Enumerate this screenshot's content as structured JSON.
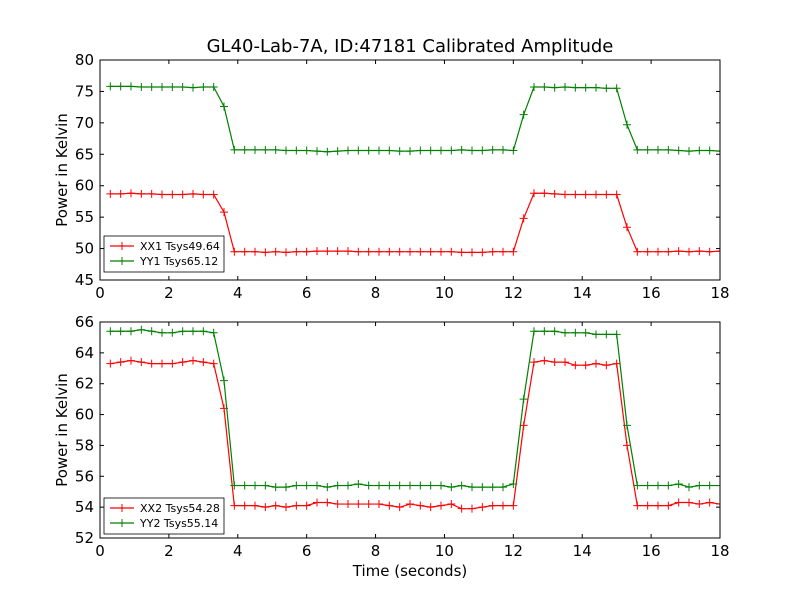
{
  "chart_data": [
    {
      "type": "line",
      "title": "GL40-Lab-7A, ID:47181 Calibrated Amplitude",
      "xlabel": "",
      "ylabel": "Power in Kelvin",
      "xlim": [
        0,
        18
      ],
      "ylim": [
        45,
        80
      ],
      "xticks": [
        "0",
        "2",
        "4",
        "6",
        "8",
        "10",
        "12",
        "14",
        "16",
        "18"
      ],
      "yticks": [
        "45",
        "50",
        "55",
        "60",
        "65",
        "70",
        "75",
        "80"
      ],
      "grid": false,
      "legend_position": "lower-left",
      "x": [
        0.3,
        0.6,
        0.9,
        1.2,
        1.5,
        1.8,
        2.1,
        2.4,
        2.7,
        3.0,
        3.3,
        3.6,
        3.9,
        4.2,
        4.5,
        4.8,
        5.1,
        5.4,
        5.7,
        6.0,
        6.3,
        6.6,
        6.9,
        7.2,
        7.5,
        7.8,
        8.1,
        8.4,
        8.7,
        9.0,
        9.3,
        9.6,
        9.9,
        10.2,
        10.5,
        10.8,
        11.1,
        11.4,
        11.7,
        12.0,
        12.3,
        12.6,
        12.9,
        13.2,
        13.5,
        13.8,
        14.1,
        14.4,
        14.7,
        15.0,
        15.3,
        15.6,
        15.9,
        16.2,
        16.5,
        16.8,
        17.1,
        17.4,
        17.7,
        18.0
      ],
      "series": [
        {
          "name": "XX1 Tsys49.64",
          "color": "#ff0000",
          "values": [
            58.7,
            58.7,
            58.8,
            58.7,
            58.7,
            58.6,
            58.6,
            58.6,
            58.7,
            58.6,
            58.6,
            55.8,
            49.5,
            49.5,
            49.5,
            49.4,
            49.5,
            49.4,
            49.5,
            49.5,
            49.6,
            49.6,
            49.6,
            49.6,
            49.5,
            49.5,
            49.5,
            49.5,
            49.5,
            49.5,
            49.5,
            49.5,
            49.5,
            49.5,
            49.4,
            49.4,
            49.4,
            49.5,
            49.5,
            49.5,
            54.8,
            58.8,
            58.8,
            58.7,
            58.6,
            58.6,
            58.6,
            58.6,
            58.6,
            58.6,
            53.4,
            49.5,
            49.5,
            49.5,
            49.5,
            49.6,
            49.5,
            49.6,
            49.5,
            49.6
          ]
        },
        {
          "name": "YY1 Tsys65.12",
          "color": "#008000",
          "values": [
            75.8,
            75.8,
            75.8,
            75.7,
            75.7,
            75.7,
            75.7,
            75.7,
            75.6,
            75.7,
            75.7,
            72.6,
            65.7,
            65.7,
            65.7,
            65.7,
            65.7,
            65.6,
            65.6,
            65.6,
            65.5,
            65.4,
            65.5,
            65.6,
            65.6,
            65.6,
            65.6,
            65.6,
            65.5,
            65.5,
            65.6,
            65.6,
            65.6,
            65.6,
            65.7,
            65.6,
            65.6,
            65.7,
            65.7,
            65.6,
            71.3,
            75.7,
            75.7,
            75.6,
            75.7,
            75.6,
            75.6,
            75.6,
            75.5,
            75.5,
            69.7,
            65.7,
            65.7,
            65.7,
            65.7,
            65.6,
            65.5,
            65.6,
            65.6,
            65.5
          ]
        }
      ]
    },
    {
      "type": "line",
      "title": "",
      "xlabel": "Time (seconds)",
      "ylabel": "Power in Kelvin",
      "xlim": [
        0,
        18
      ],
      "ylim": [
        52,
        66
      ],
      "xticks": [
        "0",
        "2",
        "4",
        "6",
        "8",
        "10",
        "12",
        "14",
        "16",
        "18"
      ],
      "yticks": [
        "52",
        "54",
        "56",
        "58",
        "60",
        "62",
        "64",
        "66"
      ],
      "grid": false,
      "legend_position": "lower-left",
      "x": [
        0.3,
        0.6,
        0.9,
        1.2,
        1.5,
        1.8,
        2.1,
        2.4,
        2.7,
        3.0,
        3.3,
        3.6,
        3.9,
        4.2,
        4.5,
        4.8,
        5.1,
        5.4,
        5.7,
        6.0,
        6.3,
        6.6,
        6.9,
        7.2,
        7.5,
        7.8,
        8.1,
        8.4,
        8.7,
        9.0,
        9.3,
        9.6,
        9.9,
        10.2,
        10.5,
        10.8,
        11.1,
        11.4,
        11.7,
        12.0,
        12.3,
        12.6,
        12.9,
        13.2,
        13.5,
        13.8,
        14.1,
        14.4,
        14.7,
        15.0,
        15.3,
        15.6,
        15.9,
        16.2,
        16.5,
        16.8,
        17.1,
        17.4,
        17.7,
        18.0
      ],
      "series": [
        {
          "name": "XX2 Tsys54.28",
          "color": "#ff0000",
          "values": [
            63.3,
            63.4,
            63.5,
            63.4,
            63.3,
            63.3,
            63.3,
            63.4,
            63.5,
            63.4,
            63.3,
            60.4,
            54.1,
            54.1,
            54.1,
            54.0,
            54.1,
            54.0,
            54.1,
            54.1,
            54.3,
            54.3,
            54.2,
            54.2,
            54.2,
            54.2,
            54.2,
            54.1,
            54.0,
            54.2,
            54.1,
            54.0,
            54.1,
            54.2,
            53.9,
            53.9,
            54.0,
            54.1,
            54.1,
            54.1,
            59.3,
            63.4,
            63.5,
            63.4,
            63.4,
            63.2,
            63.2,
            63.3,
            63.2,
            63.3,
            58.0,
            54.1,
            54.1,
            54.1,
            54.1,
            54.3,
            54.3,
            54.2,
            54.3,
            54.2
          ]
        },
        {
          "name": "YY2 Tsys55.14",
          "color": "#008000",
          "values": [
            65.4,
            65.4,
            65.4,
            65.5,
            65.4,
            65.3,
            65.3,
            65.4,
            65.4,
            65.4,
            65.3,
            62.2,
            55.4,
            55.4,
            55.4,
            55.4,
            55.3,
            55.3,
            55.4,
            55.4,
            55.4,
            55.3,
            55.4,
            55.4,
            55.5,
            55.4,
            55.4,
            55.4,
            55.4,
            55.4,
            55.4,
            55.4,
            55.4,
            55.3,
            55.4,
            55.3,
            55.3,
            55.3,
            55.3,
            55.5,
            61.0,
            65.4,
            65.4,
            65.4,
            65.3,
            65.3,
            65.3,
            65.2,
            65.2,
            65.2,
            59.3,
            55.4,
            55.4,
            55.4,
            55.4,
            55.5,
            55.3,
            55.4,
            55.4,
            55.4
          ]
        }
      ]
    }
  ]
}
